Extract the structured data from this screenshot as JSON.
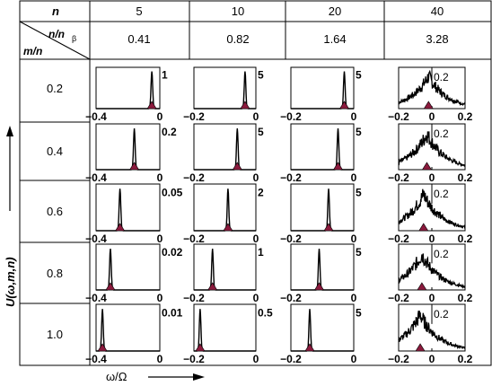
{
  "table": {
    "header_n_label": "n",
    "n_values": [
      "5",
      "10",
      "20",
      "40"
    ],
    "ratio_label_top": "n/n",
    "ratio_label_sub": "β",
    "ratio_label_bottom": "m/n",
    "ratio_values": [
      "0.41",
      "0.82",
      "1.64",
      "3.28"
    ],
    "row_values": [
      "0.2",
      "0.4",
      "0.6",
      "0.8",
      "1.0"
    ]
  },
  "axes": {
    "y_label": "U(ω,m,n)",
    "x_label": "ω/Ω"
  },
  "chart_data": {
    "type": "line",
    "description_units": "x in ω/Ω, y in arbitrary spectral units",
    "columns": [
      {
        "n": 5,
        "xlim": [
          -0.4,
          0
        ],
        "x_tick_labels": [
          "−0.4",
          "0"
        ]
      },
      {
        "n": 10,
        "xlim": [
          -0.2,
          0
        ],
        "x_tick_labels": [
          "−0.2",
          "0"
        ]
      },
      {
        "n": 20,
        "xlim": [
          -0.2,
          0
        ],
        "x_tick_labels": [
          "−0.2",
          "0"
        ]
      },
      {
        "n": 40,
        "xlim": [
          -0.2,
          0.2
        ],
        "x_tick_labels": [
          "−0.2",
          "0",
          "0.2"
        ]
      }
    ],
    "panels": [
      [
        {
          "row": "0.2",
          "col": 5,
          "peak_x": -0.05,
          "y_tick": "1",
          "ymax": 1.2
        },
        {
          "row": "0.2",
          "col": 10,
          "peak_x": -0.035,
          "y_tick": "5",
          "ymax": 6
        },
        {
          "row": "0.2",
          "col": 20,
          "peak_x": -0.03,
          "y_tick": "5",
          "ymax": 6
        },
        {
          "row": "0.2",
          "col": 40,
          "peak_x": -0.02,
          "y_tick": "0.2",
          "ymax": 0.3,
          "noisy": true
        }
      ],
      [
        {
          "row": "0.4",
          "col": 5,
          "peak_x": -0.16,
          "y_tick": "0.2",
          "ymax": 0.3
        },
        {
          "row": "0.4",
          "col": 10,
          "peak_x": -0.06,
          "y_tick": "5",
          "ymax": 6
        },
        {
          "row": "0.4",
          "col": 20,
          "peak_x": -0.05,
          "y_tick": "5",
          "ymax": 6
        },
        {
          "row": "0.4",
          "col": 40,
          "peak_x": -0.03,
          "y_tick": "0.2",
          "ymax": 0.3,
          "noisy": true
        }
      ],
      [
        {
          "row": "0.6",
          "col": 5,
          "peak_x": -0.25,
          "y_tick": "0.05",
          "ymax": 0.07
        },
        {
          "row": "0.6",
          "col": 10,
          "peak_x": -0.09,
          "y_tick": "2",
          "ymax": 2.6
        },
        {
          "row": "0.6",
          "col": 20,
          "peak_x": -0.08,
          "y_tick": "5",
          "ymax": 6
        },
        {
          "row": "0.6",
          "col": 40,
          "peak_x": -0.05,
          "y_tick": "0.2",
          "ymax": 0.3,
          "noisy": true
        }
      ],
      [
        {
          "row": "0.8",
          "col": 5,
          "peak_x": -0.31,
          "y_tick": "0.02",
          "ymax": 0.03
        },
        {
          "row": "0.8",
          "col": 10,
          "peak_x": -0.14,
          "y_tick": "1",
          "ymax": 1.2
        },
        {
          "row": "0.8",
          "col": 20,
          "peak_x": -0.11,
          "y_tick": "5",
          "ymax": 6
        },
        {
          "row": "0.8",
          "col": 40,
          "peak_x": -0.06,
          "y_tick": "0.2",
          "ymax": 0.3,
          "noisy": true
        }
      ],
      [
        {
          "row": "1.0",
          "col": 5,
          "peak_x": -0.36,
          "y_tick": "0.01",
          "ymax": 0.013
        },
        {
          "row": "1.0",
          "col": 10,
          "peak_x": -0.18,
          "y_tick": "0.5",
          "ymax": 0.6
        },
        {
          "row": "1.0",
          "col": 20,
          "peak_x": -0.14,
          "y_tick": "5",
          "ymax": 6
        },
        {
          "row": "1.0",
          "col": 40,
          "peak_x": -0.07,
          "y_tick": "0.2",
          "ymax": 0.3,
          "noisy": true
        }
      ]
    ],
    "marker_color": "#8b1a3d"
  }
}
